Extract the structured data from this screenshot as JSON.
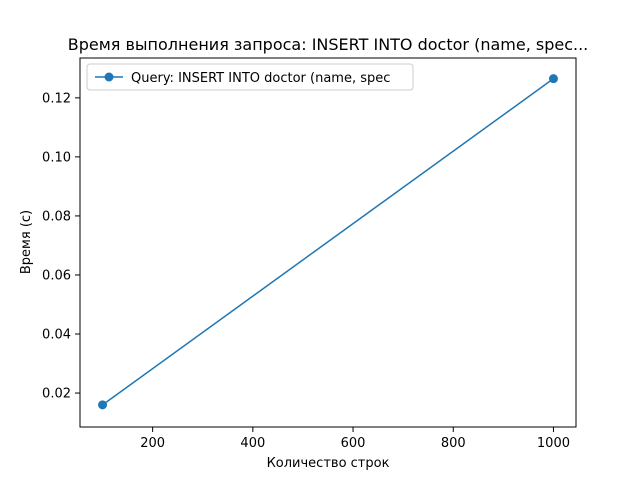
{
  "chart_data": {
    "type": "line",
    "title": "Время выполнения запроса: INSERT INTO doctor (name, spec...",
    "xlabel": "Количество строк",
    "ylabel": "Время (с)",
    "xlim": [
      55,
      1045
    ],
    "ylim": [
      0.0085,
      0.1335
    ],
    "xticks": [
      200,
      400,
      600,
      800,
      1000
    ],
    "yticks": [
      0.02,
      0.04,
      0.06,
      0.08,
      0.1,
      0.12
    ],
    "xtick_labels": [
      "200",
      "400",
      "600",
      "800",
      "1000"
    ],
    "ytick_labels": [
      "0.02",
      "0.04",
      "0.06",
      "0.08",
      "0.10",
      "0.12"
    ],
    "grid": false,
    "legend_position": "upper-left",
    "series": [
      {
        "name": "Query: INSERT INTO doctor (name, spec",
        "color": "#1f77b4",
        "marker": "circle",
        "x": [
          100,
          1000
        ],
        "y": [
          0.016,
          0.1265
        ]
      }
    ]
  }
}
